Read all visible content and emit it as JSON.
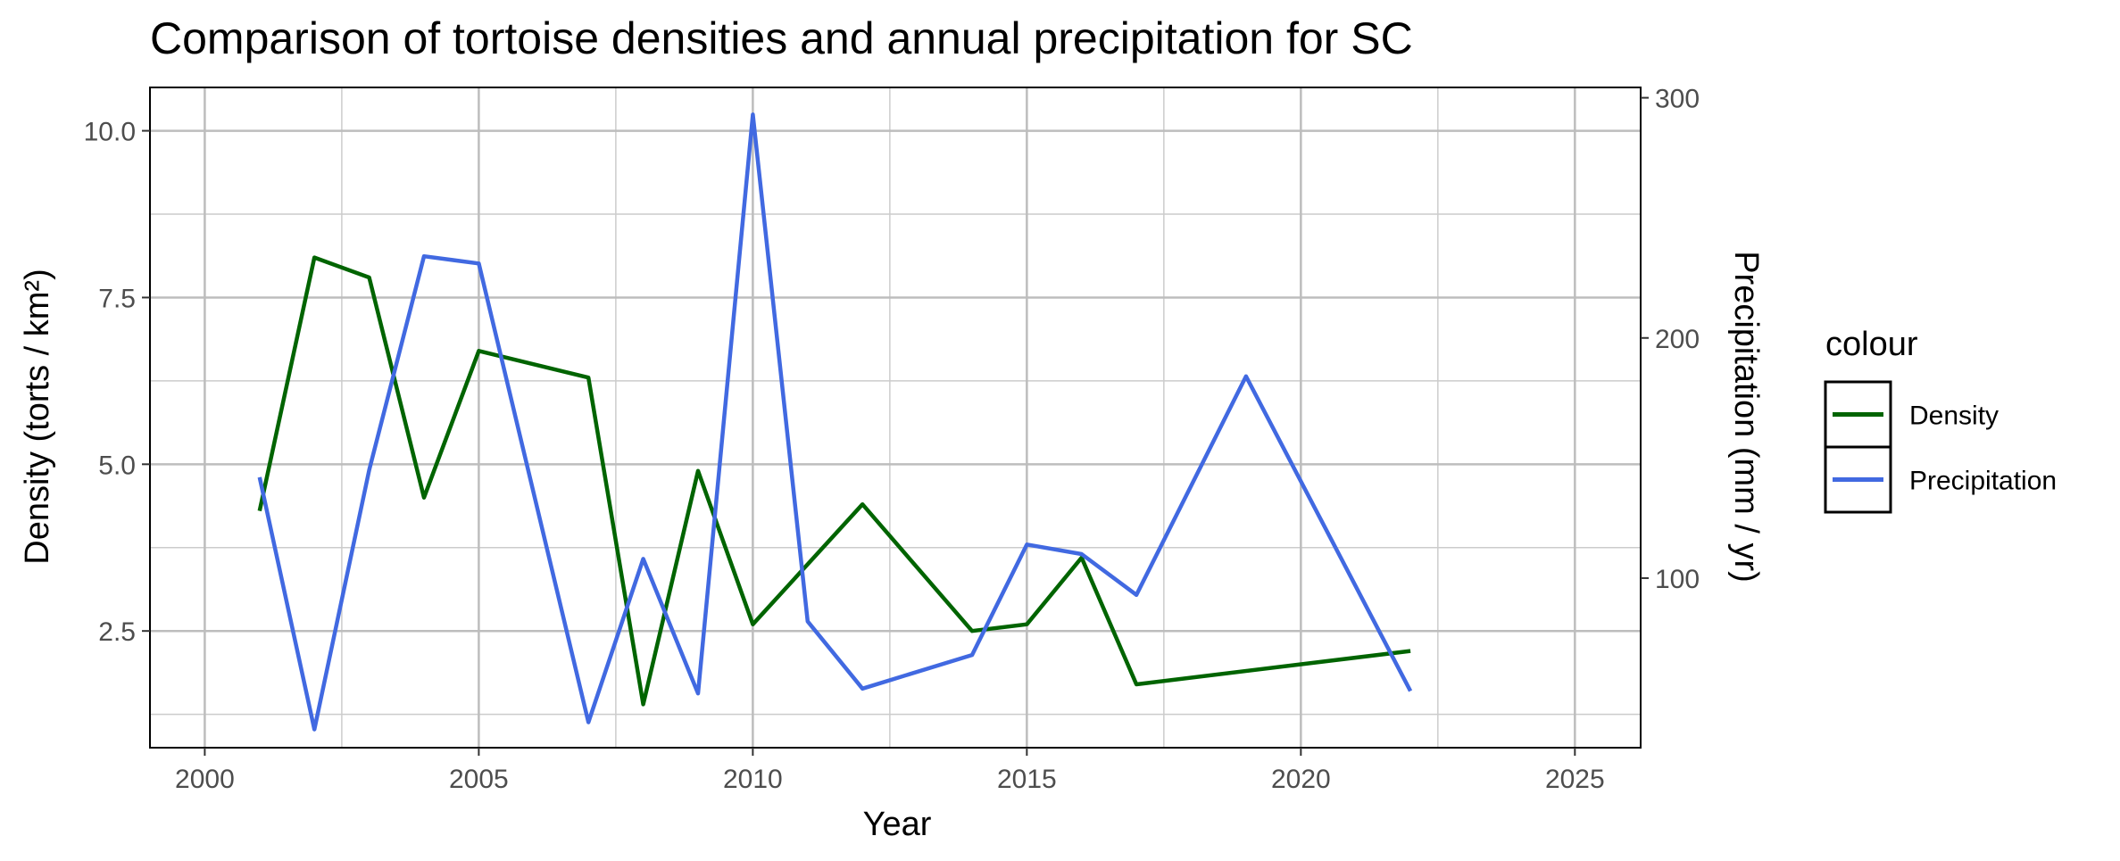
{
  "chart_data": {
    "type": "line",
    "title": "Comparison of tortoise densities and annual precipitation for SC",
    "xlabel": "Year",
    "ylabel": "Density (torts / km²)",
    "y2label": "Precipitation (mm / yr)",
    "xlim": [
      1999,
      2026.2
    ],
    "ylim": [
      0.75,
      10.65
    ],
    "y2lim": [
      29.4,
      304.3
    ],
    "x_ticks": [
      "2000",
      "2005",
      "2010",
      "2015",
      "2020",
      "2025"
    ],
    "y_ticks": [
      "2.5",
      "5.0",
      "7.5",
      "10.0"
    ],
    "y2_ticks": [
      "100",
      "200",
      "300"
    ],
    "grid": true,
    "legend": {
      "title": "colour",
      "position": "right"
    },
    "series": [
      {
        "name": "Density",
        "axis": "left",
        "color": "#006400",
        "x": [
          2001,
          2002,
          2003,
          2004,
          2005,
          2007,
          2008,
          2009,
          2010,
          2012,
          2014,
          2015,
          2016,
          2017,
          2022
        ],
        "y": [
          4.3,
          8.1,
          7.8,
          4.5,
          6.7,
          6.3,
          1.4,
          4.9,
          2.6,
          4.4,
          2.5,
          2.6,
          3.6,
          1.7,
          2.2
        ]
      },
      {
        "name": "Precipitation",
        "axis": "right",
        "color": "#4169E1",
        "x": [
          2001,
          2002,
          2003,
          2004,
          2005,
          2007,
          2008,
          2009,
          2010,
          2011,
          2012,
          2014,
          2015,
          2016,
          2017,
          2019,
          2022
        ],
        "y": [
          142,
          37,
          145,
          234,
          231,
          40,
          108,
          52,
          293,
          82,
          54,
          68,
          114,
          110,
          93,
          184,
          53
        ]
      }
    ]
  }
}
